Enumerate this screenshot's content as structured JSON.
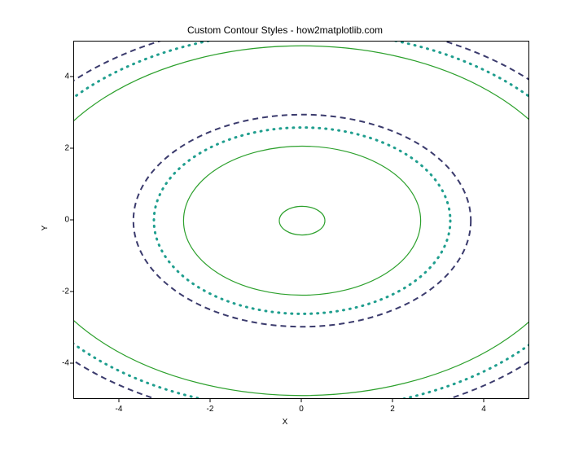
{
  "chart": {
    "type": "contour",
    "title": "Custom Contour Styles - how2matplotlib.com",
    "title_fontsize": 12,
    "xlabel": "X",
    "ylabel": "Y",
    "label_fontsize": 10,
    "background_color": "#ffffff",
    "border_color": "#000000",
    "xlim": [
      -5,
      5
    ],
    "ylim": [
      -5,
      5
    ],
    "xtick_step": 2,
    "ytick_step": 2,
    "xtick_labels": [
      "-4",
      "-2",
      "0",
      "2",
      "4"
    ],
    "ytick_labels": [
      "-4",
      "-2",
      "0",
      "2",
      "4"
    ],
    "tick_fontsize": 10,
    "compression": 1.25,
    "contours": [
      {
        "level": 0.2,
        "rx": 0.5,
        "color": "#2ca02c",
        "style": "solid",
        "width": 1.2,
        "dash": null
      },
      {
        "level": 2.6,
        "rx": 2.6,
        "color": "#2ca02c",
        "style": "solid",
        "width": 1.2,
        "dash": null
      },
      {
        "level": 3.25,
        "rx": 3.25,
        "color": "#1f9e8e",
        "style": "dotted",
        "width": 3.0,
        "dash": "1 7"
      },
      {
        "level": 3.7,
        "rx": 3.7,
        "color": "#3b3b6d",
        "style": "dashed",
        "width": 2.0,
        "dash": "7 5"
      },
      {
        "level": 6.1,
        "rx": 6.1,
        "color": "#2ca02c",
        "style": "solid",
        "width": 1.2,
        "dash": null
      },
      {
        "level": 6.6,
        "rx": 6.6,
        "color": "#1f9e8e",
        "style": "dotted",
        "width": 3.0,
        "dash": "1 7"
      },
      {
        "level": 7.0,
        "rx": 7.0,
        "color": "#3b3b6d",
        "style": "dashed",
        "width": 2.0,
        "dash": "7 5"
      }
    ]
  }
}
